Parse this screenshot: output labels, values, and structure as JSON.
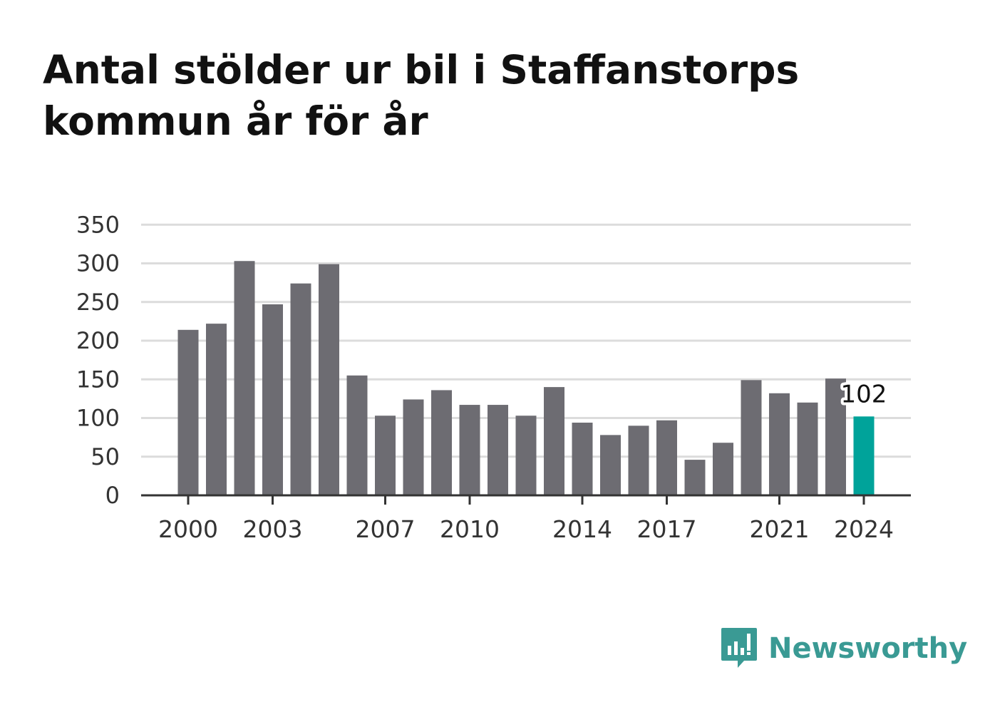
{
  "title": "Antal stölder ur bil i Staffanstorps kommun år för år",
  "brand": {
    "name": "Newsworthy",
    "icon": "speech-bubble-bar-chart-icon",
    "color": "#3a9a94"
  },
  "chart_data": {
    "type": "bar",
    "title": "Antal stölder ur bil i Staffanstorps kommun år för år",
    "xlabel": "",
    "ylabel": "",
    "ylim": [
      0,
      350
    ],
    "yticks": [
      0,
      50,
      100,
      150,
      200,
      250,
      300,
      350
    ],
    "grid": true,
    "legend": "none",
    "categories": [
      "2000",
      "2001",
      "2002",
      "2003",
      "2004",
      "2005",
      "2006",
      "2007",
      "2008",
      "2009",
      "2010",
      "2011",
      "2012",
      "2013",
      "2014",
      "2015",
      "2016",
      "2017",
      "2018",
      "2019",
      "2020",
      "2021",
      "2022",
      "2023",
      "2024"
    ],
    "xtick_labels": [
      "2000",
      "2003",
      "2007",
      "2010",
      "2014",
      "2017",
      "2021",
      "2024"
    ],
    "values": [
      214,
      222,
      303,
      247,
      274,
      299,
      155,
      103,
      124,
      136,
      117,
      117,
      103,
      140,
      94,
      78,
      90,
      97,
      46,
      68,
      149,
      132,
      120,
      151,
      102
    ],
    "bar_color": "#6d6c72",
    "highlight_color": "#00a39a",
    "highlight_category": "2024",
    "data_labels": [
      {
        "category": "2024",
        "text": "102"
      }
    ]
  }
}
